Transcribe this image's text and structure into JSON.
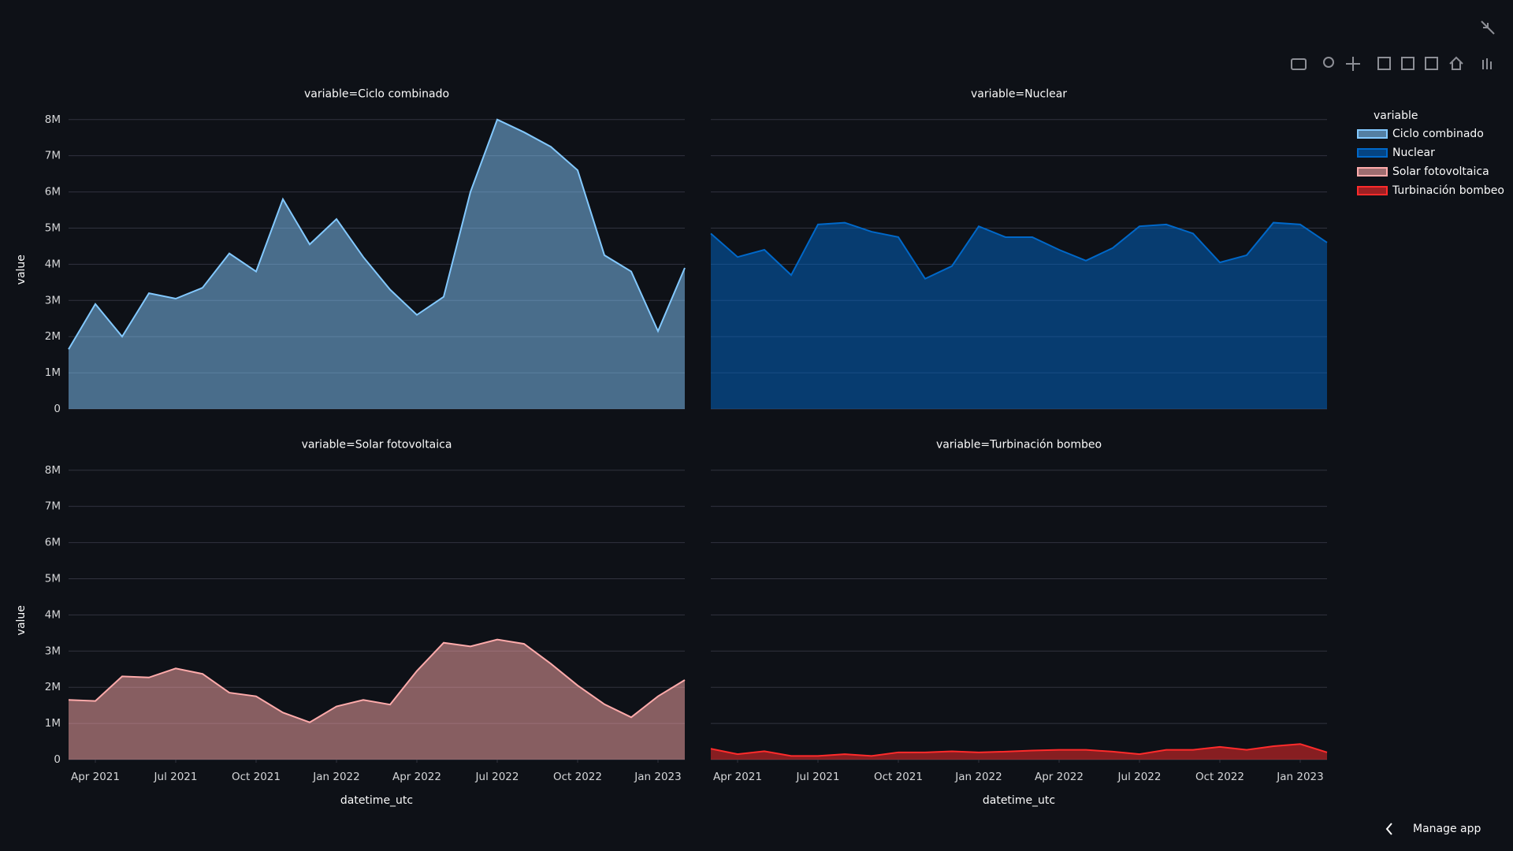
{
  "chart_data": [
    {
      "type": "area",
      "title": "variable=Ciclo combinado",
      "y_label": "value",
      "x": [
        "2021-03",
        "2021-04",
        "2021-05",
        "2021-06",
        "2021-07",
        "2021-08",
        "2021-09",
        "2021-10",
        "2021-11",
        "2021-12",
        "2022-01",
        "2022-02",
        "2022-03",
        "2022-04",
        "2022-05",
        "2022-06",
        "2022-07",
        "2022-08",
        "2022-09",
        "2022-10",
        "2022-11",
        "2022-12",
        "2023-01",
        "2023-02"
      ],
      "xlim": [
        "2021-03",
        "2023-02"
      ],
      "series": [
        {
          "name": "Ciclo combinado",
          "color": "#83c9ff",
          "values": [
            1650000,
            2900000,
            2000000,
            3200000,
            3050000,
            3350000,
            4300000,
            3800000,
            5800000,
            4550000,
            5250000,
            4200000,
            3300000,
            2600000,
            3100000,
            6000000,
            8000000,
            7650000,
            7250000,
            6600000,
            4250000,
            3800000,
            2150000,
            3900000
          ]
        }
      ],
      "ylim": [
        0,
        8400000
      ],
      "yticks": [
        0,
        {
          "value": 1000000,
          "label": "1M"
        },
        {
          "value": 2000000,
          "label": "2M"
        },
        {
          "value": 3000000,
          "label": "3M"
        },
        {
          "value": 4000000,
          "label": "4M"
        },
        {
          "value": 5000000,
          "label": "5M"
        },
        {
          "value": 6000000,
          "label": "6M"
        },
        {
          "value": 7000000,
          "label": "7M"
        },
        {
          "value": 8000000,
          "label": "8M"
        }
      ],
      "grid": true
    },
    {
      "type": "area",
      "title": "variable=Nuclear",
      "x": [
        "2021-03",
        "2021-04",
        "2021-05",
        "2021-06",
        "2021-07",
        "2021-08",
        "2021-09",
        "2021-10",
        "2021-11",
        "2021-12",
        "2022-01",
        "2022-02",
        "2022-03",
        "2022-04",
        "2022-05",
        "2022-06",
        "2022-07",
        "2022-08",
        "2022-09",
        "2022-10",
        "2022-11",
        "2022-12",
        "2023-01",
        "2023-02"
      ],
      "xlim": [
        "2021-03",
        "2023-02"
      ],
      "series": [
        {
          "name": "Nuclear",
          "color": "#0068c9",
          "values": [
            4850000,
            4200000,
            4400000,
            3700000,
            5100000,
            5150000,
            4900000,
            4750000,
            3600000,
            3950000,
            5050000,
            4750000,
            4750000,
            4400000,
            4100000,
            4450000,
            5050000,
            5100000,
            4850000,
            4050000,
            4250000,
            5150000,
            5100000,
            4600000
          ]
        }
      ],
      "ylim": [
        0,
        8400000
      ],
      "yticks": [
        0,
        1000000,
        2000000,
        3000000,
        4000000,
        5000000,
        6000000,
        7000000,
        8000000
      ],
      "grid": true
    },
    {
      "type": "area",
      "title": "variable=Solar fotovoltaica",
      "y_label": "value",
      "x_label": "datetime_utc",
      "x": [
        "2021-03",
        "2021-04",
        "2021-05",
        "2021-06",
        "2021-07",
        "2021-08",
        "2021-09",
        "2021-10",
        "2021-11",
        "2021-12",
        "2022-01",
        "2022-02",
        "2022-03",
        "2022-04",
        "2022-05",
        "2022-06",
        "2022-07",
        "2022-08",
        "2022-09",
        "2022-10",
        "2022-11",
        "2022-12",
        "2023-01",
        "2023-02"
      ],
      "xlim": [
        "2021-03",
        "2023-02"
      ],
      "xticks": [
        {
          "value": "2021-04",
          "label": "Apr 2021"
        },
        {
          "value": "2021-07",
          "label": "Jul 2021"
        },
        {
          "value": "2021-10",
          "label": "Oct 2021"
        },
        {
          "value": "2022-01",
          "label": "Jan 2022"
        },
        {
          "value": "2022-04",
          "label": "Apr 2022"
        },
        {
          "value": "2022-07",
          "label": "Jul 2022"
        },
        {
          "value": "2022-10",
          "label": "Oct 2022"
        },
        {
          "value": "2023-01",
          "label": "Jan 2023"
        }
      ],
      "series": [
        {
          "name": "Solar fotovoltaica",
          "color": "#ffabab",
          "values": [
            1650000,
            1620000,
            2300000,
            2270000,
            2520000,
            2370000,
            1850000,
            1750000,
            1300000,
            1030000,
            1470000,
            1650000,
            1520000,
            2450000,
            3230000,
            3130000,
            3320000,
            3200000,
            2650000,
            2050000,
            1530000,
            1170000,
            1750000,
            2200000
          ]
        }
      ],
      "ylim": [
        0,
        8400000
      ],
      "yticks": [
        0,
        {
          "value": 1000000,
          "label": "1M"
        },
        {
          "value": 2000000,
          "label": "2M"
        },
        {
          "value": 3000000,
          "label": "3M"
        },
        {
          "value": 4000000,
          "label": "4M"
        },
        {
          "value": 5000000,
          "label": "5M"
        },
        {
          "value": 6000000,
          "label": "6M"
        },
        {
          "value": 7000000,
          "label": "7M"
        },
        {
          "value": 8000000,
          "label": "8M"
        }
      ],
      "grid": true
    },
    {
      "type": "area",
      "title": "variable=Turbinación bombeo",
      "x_label": "datetime_utc",
      "x": [
        "2021-03",
        "2021-04",
        "2021-05",
        "2021-06",
        "2021-07",
        "2021-08",
        "2021-09",
        "2021-10",
        "2021-11",
        "2021-12",
        "2022-01",
        "2022-02",
        "2022-03",
        "2022-04",
        "2022-05",
        "2022-06",
        "2022-07",
        "2022-08",
        "2022-09",
        "2022-10",
        "2022-11",
        "2022-12",
        "2023-01",
        "2023-02"
      ],
      "xlim": [
        "2021-03",
        "2023-02"
      ],
      "xticks": [
        {
          "value": "2021-04",
          "label": "Apr 2021"
        },
        {
          "value": "2021-07",
          "label": "Jul 2021"
        },
        {
          "value": "2021-10",
          "label": "Oct 2021"
        },
        {
          "value": "2022-01",
          "label": "Jan 2022"
        },
        {
          "value": "2022-04",
          "label": "Apr 2022"
        },
        {
          "value": "2022-07",
          "label": "Jul 2022"
        },
        {
          "value": "2022-10",
          "label": "Oct 2022"
        },
        {
          "value": "2023-01",
          "label": "Jan 2023"
        }
      ],
      "series": [
        {
          "name": "Turbinación bombeo",
          "color": "#ff2b2b",
          "values": [
            300000,
            150000,
            230000,
            100000,
            100000,
            150000,
            100000,
            200000,
            200000,
            230000,
            200000,
            220000,
            250000,
            270000,
            270000,
            220000,
            150000,
            270000,
            270000,
            350000,
            270000,
            370000,
            430000,
            200000
          ]
        }
      ],
      "ylim": [
        0,
        8400000
      ],
      "yticks": [
        0,
        1000000,
        2000000,
        3000000,
        4000000,
        5000000,
        6000000,
        7000000,
        8000000
      ],
      "grid": true
    }
  ],
  "legend": {
    "title": "variable"
  },
  "app": {
    "manage": "Manage app"
  }
}
